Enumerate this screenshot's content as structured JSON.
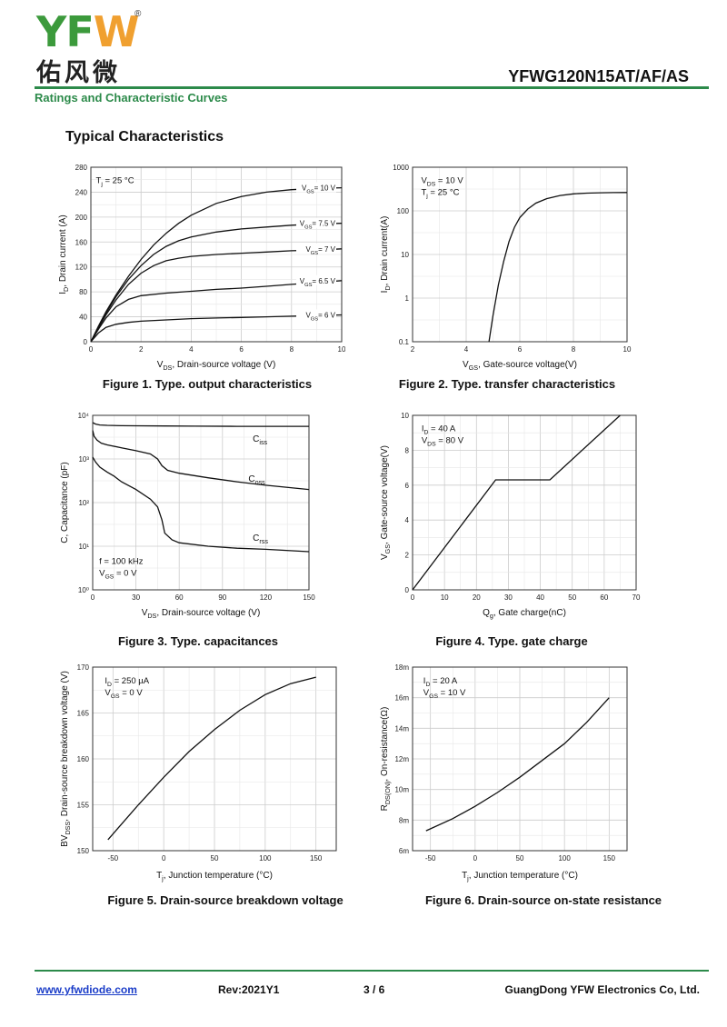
{
  "header": {
    "logo_letters": [
      "Y",
      "F",
      "W"
    ],
    "logo_cn": "佑风微",
    "logo_reg": "®",
    "part_number": "YFWG120N15AT/AF/AS",
    "subtitle": "Ratings and Characteristic Curves",
    "section_title": "Typical Characteristics"
  },
  "colors": {
    "brand_green": "#2c8a4a",
    "logo_orange": "#f0a030",
    "curve": "#111111",
    "grid": "#cccccc",
    "link": "#1a3cc8"
  },
  "footer": {
    "url": "www.yfwdiode.com",
    "revision": "Rev:2021Y1",
    "page": "3 / 6",
    "company": "GuangDong YFW Electronics Co, Ltd."
  },
  "chart_data": [
    {
      "id": "fig1",
      "type": "line",
      "caption": "Figure 1. Type. output characteristics",
      "xlabel": "V_DS, Drain-source voltage (V)",
      "ylabel": "I_D, Drain current (A)",
      "xlim": [
        0,
        10
      ],
      "ylim": [
        0,
        280
      ],
      "xticks": [
        0,
        2,
        4,
        6,
        8,
        10
      ],
      "yticks": [
        0,
        40,
        80,
        120,
        160,
        200,
        240,
        280
      ],
      "annotations": [
        "T_j = 25 °C"
      ],
      "series": [
        {
          "name": "V_GS= 10 V",
          "x": [
            0,
            0.3,
            0.6,
            1,
            1.5,
            2,
            2.5,
            3,
            3.5,
            4,
            5,
            6,
            7,
            8,
            9,
            10
          ],
          "y": [
            0,
            25,
            48,
            75,
            105,
            132,
            155,
            174,
            190,
            203,
            222,
            233,
            240,
            244,
            246,
            247
          ]
        },
        {
          "name": "V_GS= 7.5 V",
          "x": [
            0,
            0.3,
            0.6,
            1,
            1.5,
            2,
            2.5,
            3,
            3.5,
            4,
            5,
            6,
            7,
            8,
            9,
            10
          ],
          "y": [
            0,
            24,
            46,
            72,
            100,
            122,
            140,
            153,
            162,
            168,
            176,
            181,
            184,
            187,
            189,
            190
          ]
        },
        {
          "name": "V_GS= 7 V",
          "x": [
            0,
            0.3,
            0.6,
            1,
            1.5,
            2,
            2.5,
            3,
            3.5,
            4,
            5,
            6,
            7,
            8,
            9,
            10
          ],
          "y": [
            0,
            22,
            43,
            67,
            92,
            110,
            122,
            130,
            134,
            137,
            140,
            142,
            144,
            146,
            147,
            149
          ]
        },
        {
          "name": "V_GS= 6.5 V",
          "x": [
            0,
            0.3,
            0.6,
            1,
            1.5,
            2,
            3,
            4,
            5,
            6,
            7,
            8,
            9,
            10
          ],
          "y": [
            0,
            20,
            38,
            56,
            68,
            74,
            78,
            81,
            84,
            86,
            89,
            92,
            95,
            98
          ]
        },
        {
          "name": "V_GS= 6 V",
          "x": [
            0,
            0.3,
            0.6,
            1,
            1.5,
            2,
            3,
            4,
            5,
            6,
            7,
            8,
            9,
            10
          ],
          "y": [
            0,
            14,
            23,
            28,
            31,
            33,
            35,
            37,
            38,
            39,
            40,
            41,
            42,
            43
          ]
        }
      ]
    },
    {
      "id": "fig2",
      "type": "line",
      "yscale": "log",
      "caption": "Figure 2. Type. transfer characteristics",
      "xlabel": "V_GS, Gate-source voltage(V)",
      "ylabel": "I_D, Drain current(A)",
      "xlim": [
        2,
        10
      ],
      "ylim": [
        0.1,
        1000
      ],
      "xticks": [
        2,
        4,
        6,
        8,
        10
      ],
      "yticks": [
        0.1,
        1,
        10,
        100,
        1000
      ],
      "annotations": [
        "V_DS = 10 V",
        "T_j = 25 °C"
      ],
      "series": [
        {
          "name": "I_D",
          "x": [
            4.85,
            5,
            5.2,
            5.4,
            5.6,
            5.8,
            6,
            6.3,
            6.6,
            7,
            7.5,
            8,
            8.5,
            9,
            9.5,
            10
          ],
          "y": [
            0.1,
            0.4,
            2,
            7,
            20,
            42,
            70,
            110,
            150,
            190,
            225,
            245,
            255,
            260,
            262,
            264
          ]
        }
      ]
    },
    {
      "id": "fig3",
      "type": "line",
      "yscale": "log",
      "caption": "Figure 3. Type. capacitances",
      "xlabel": "V_DS, Drain-source voltage (V)",
      "ylabel": "C, Capacitance (pF)",
      "xlim": [
        0,
        150
      ],
      "ylim": [
        1,
        10000
      ],
      "xticks": [
        0,
        30,
        60,
        90,
        120,
        150
      ],
      "yticks": [
        1,
        10,
        100,
        1000,
        10000
      ],
      "annotations": [
        "f = 100 kHz",
        "V_GS = 0 V"
      ],
      "series": [
        {
          "name": "C_iss",
          "x": [
            0,
            2,
            5,
            10,
            20,
            30,
            50,
            70,
            100,
            150
          ],
          "y": [
            6800,
            6300,
            6000,
            5900,
            5800,
            5750,
            5700,
            5650,
            5600,
            5600
          ]
        },
        {
          "name": "C_oss",
          "x": [
            0,
            1,
            3,
            6,
            10,
            20,
            30,
            40,
            45,
            48,
            52,
            60,
            80,
            100,
            120,
            150
          ],
          "y": [
            4500,
            3300,
            2700,
            2300,
            2100,
            1800,
            1550,
            1300,
            1000,
            700,
            550,
            470,
            370,
            300,
            250,
            200
          ]
        },
        {
          "name": "C_rss",
          "x": [
            0,
            2,
            5,
            10,
            15,
            20,
            30,
            40,
            45,
            48,
            50,
            55,
            60,
            80,
            100,
            120,
            150
          ],
          "y": [
            1100,
            850,
            650,
            500,
            400,
            300,
            200,
            120,
            80,
            40,
            20,
            14,
            12,
            10,
            9,
            8.5,
            7.5
          ]
        }
      ]
    },
    {
      "id": "fig4",
      "type": "line",
      "caption": "Figure 4. Type. gate charge",
      "xlabel": "Q_g, Gate charge(nC)",
      "ylabel": "V_GS, Gate-source voltage(V)",
      "xlim": [
        0,
        70
      ],
      "ylim": [
        0,
        10
      ],
      "xticks": [
        0,
        10,
        20,
        30,
        40,
        50,
        60,
        70
      ],
      "yticks": [
        0,
        2,
        4,
        6,
        8,
        10
      ],
      "annotations": [
        "I_D = 40 A",
        "V_DS = 80 V"
      ],
      "series": [
        {
          "name": "V_GS",
          "x": [
            0,
            26,
            43,
            65
          ],
          "y": [
            0,
            6.3,
            6.3,
            10
          ]
        }
      ]
    },
    {
      "id": "fig5",
      "type": "line",
      "caption": "Figure 5. Drain-source breakdown voltage",
      "xlabel": "T_j, Junction temperature (°C)",
      "ylabel": "BV_DSS, Drain-source breakdown voltage (V)",
      "xlim": [
        -70,
        170
      ],
      "ylim": [
        150,
        170
      ],
      "xticks": [
        -50,
        0,
        50,
        100,
        150
      ],
      "yticks": [
        150,
        155,
        160,
        165,
        170
      ],
      "annotations": [
        "I_D = 250 µA",
        "V_GS = 0 V"
      ],
      "series": [
        {
          "name": "BV_DSS",
          "x": [
            -55,
            -25,
            0,
            25,
            50,
            75,
            100,
            125,
            150
          ],
          "y": [
            151.2,
            155,
            158,
            160.8,
            163.2,
            165.3,
            167,
            168.2,
            168.9
          ]
        }
      ]
    },
    {
      "id": "fig6",
      "type": "line",
      "caption": "Figure 6. Drain-source on-state resistance",
      "xlabel": "T_j, Junction temperature (°C)",
      "ylabel": "R_DS(ON), On-resistance(Ω)",
      "xlim": [
        -70,
        170
      ],
      "ylim": [
        6,
        18
      ],
      "ytick_labels": [
        "6m",
        "8m",
        "10m",
        "12m",
        "14m",
        "16m",
        "18m"
      ],
      "xticks": [
        -50,
        0,
        50,
        100,
        150
      ],
      "yticks": [
        6,
        8,
        10,
        12,
        14,
        16,
        18
      ],
      "annotations": [
        "I_D = 20 A",
        "V_GS = 10 V"
      ],
      "series": [
        {
          "name": "R_DS(ON)",
          "x": [
            -55,
            -25,
            0,
            25,
            50,
            75,
            100,
            125,
            150
          ],
          "y": [
            7.3,
            8.1,
            8.9,
            9.8,
            10.8,
            11.9,
            13,
            14.4,
            16
          ]
        }
      ]
    }
  ]
}
